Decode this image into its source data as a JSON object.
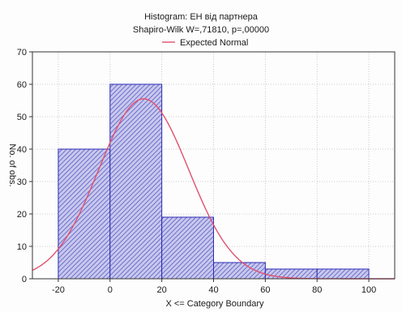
{
  "chart_data": {
    "type": "bar",
    "title": "Histogram: ЕН від партнера",
    "subtitle": "Shapiro-Wilk W=,71810, p=,00000",
    "xlabel": "X <= Category Boundary",
    "ylabel": "No. of obs.",
    "bins": [
      {
        "from": -20,
        "to": 0,
        "count": 40
      },
      {
        "from": 0,
        "to": 20,
        "count": 60
      },
      {
        "from": 20,
        "to": 40,
        "count": 19
      },
      {
        "from": 40,
        "to": 60,
        "count": 5
      },
      {
        "from": 60,
        "to": 80,
        "count": 3
      },
      {
        "from": 80,
        "to": 100,
        "count": 3
      }
    ],
    "xlim": [
      -30,
      110
    ],
    "ylim": [
      0,
      70
    ],
    "x_ticks": [
      -20,
      0,
      20,
      40,
      60,
      80,
      100
    ],
    "y_ticks": [
      0,
      10,
      20,
      30,
      40,
      50,
      60,
      70
    ],
    "grid": true,
    "legend": {
      "placement": "top-center",
      "entries": [
        {
          "label": "Expected Normal",
          "color": "#e0506e"
        }
      ]
    },
    "expected_normal": {
      "mean": 13,
      "sd": 17.4,
      "peak": 55.5
    },
    "colors": {
      "bar_fill": "#c8c8ec",
      "bar_edge": "#2b2bb4",
      "hatch": "#5a5ac8",
      "curve": "#e0506e"
    }
  }
}
